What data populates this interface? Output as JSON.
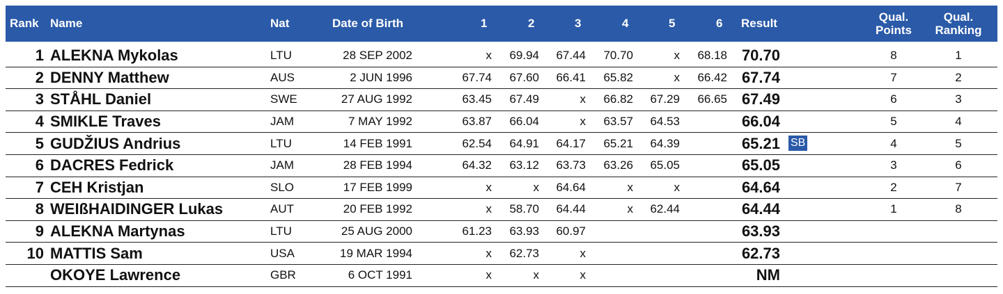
{
  "header": {
    "rank": "Rank",
    "name": "Name",
    "nat": "Nat",
    "dob": "Date of Birth",
    "attempts": [
      "1",
      "2",
      "3",
      "4",
      "5",
      "6"
    ],
    "result": "Result",
    "qual_points": [
      "Qual.",
      "Points"
    ],
    "qual_ranking": [
      "Qual.",
      "Ranking"
    ]
  },
  "colors": {
    "header_bg": "#2a5aa8",
    "badge_bg": "#2a5aa8"
  },
  "rows": [
    {
      "rank": "1",
      "name": "ALEKNA Mykolas",
      "nat": "LTU",
      "dob": "28 SEP 2002",
      "attempts": [
        "x",
        "69.94",
        "67.44",
        "70.70",
        "x",
        "68.18"
      ],
      "result": "70.70",
      "badge": "",
      "qual_points": "8",
      "qual_ranking": "1"
    },
    {
      "rank": "2",
      "name": "DENNY Matthew",
      "nat": "AUS",
      "dob": "2 JUN 1996",
      "attempts": [
        "67.74",
        "67.60",
        "66.41",
        "65.82",
        "x",
        "66.42"
      ],
      "result": "67.74",
      "badge": "",
      "qual_points": "7",
      "qual_ranking": "2"
    },
    {
      "rank": "3",
      "name": "STÅHL Daniel",
      "nat": "SWE",
      "dob": "27 AUG 1992",
      "attempts": [
        "63.45",
        "67.49",
        "x",
        "66.82",
        "67.29",
        "66.65"
      ],
      "result": "67.49",
      "badge": "",
      "qual_points": "6",
      "qual_ranking": "3"
    },
    {
      "rank": "4",
      "name": "SMIKLE Traves",
      "nat": "JAM",
      "dob": "7 MAY 1992",
      "attempts": [
        "63.87",
        "66.04",
        "x",
        "63.57",
        "64.53",
        ""
      ],
      "result": "66.04",
      "badge": "",
      "qual_points": "5",
      "qual_ranking": "4"
    },
    {
      "rank": "5",
      "name": "GUDŽIUS Andrius",
      "nat": "LTU",
      "dob": "14 FEB 1991",
      "attempts": [
        "62.54",
        "64.91",
        "64.17",
        "65.21",
        "64.39",
        ""
      ],
      "result": "65.21",
      "badge": "SB",
      "qual_points": "4",
      "qual_ranking": "5"
    },
    {
      "rank": "6",
      "name": "DACRES Fedrick",
      "nat": "JAM",
      "dob": "28 FEB 1994",
      "attempts": [
        "64.32",
        "63.12",
        "63.73",
        "63.26",
        "65.05",
        ""
      ],
      "result": "65.05",
      "badge": "",
      "qual_points": "3",
      "qual_ranking": "6"
    },
    {
      "rank": "7",
      "name": "CEH Kristjan",
      "nat": "SLO",
      "dob": "17 FEB 1999",
      "attempts": [
        "x",
        "x",
        "64.64",
        "x",
        "x",
        ""
      ],
      "result": "64.64",
      "badge": "",
      "qual_points": "2",
      "qual_ranking": "7"
    },
    {
      "rank": "8",
      "name": "WEIßHAIDINGER Lukas",
      "nat": "AUT",
      "dob": "20 FEB 1992",
      "attempts": [
        "x",
        "58.70",
        "64.44",
        "x",
        "62.44",
        ""
      ],
      "result": "64.44",
      "badge": "",
      "qual_points": "1",
      "qual_ranking": "8"
    },
    {
      "rank": "9",
      "name": "ALEKNA Martynas",
      "nat": "LTU",
      "dob": "25 AUG 2000",
      "attempts": [
        "61.23",
        "63.93",
        "60.97",
        "",
        "",
        ""
      ],
      "result": "63.93",
      "badge": "",
      "qual_points": "",
      "qual_ranking": ""
    },
    {
      "rank": "10",
      "name": "MATTIS Sam",
      "nat": "USA",
      "dob": "19 MAR 1994",
      "attempts": [
        "x",
        "62.73",
        "x",
        "",
        "",
        ""
      ],
      "result": "62.73",
      "badge": "",
      "qual_points": "",
      "qual_ranking": ""
    },
    {
      "rank": "",
      "name": "OKOYE Lawrence",
      "nat": "GBR",
      "dob": "6 OCT 1991",
      "attempts": [
        "x",
        "x",
        "x",
        "",
        "",
        ""
      ],
      "result": "NM",
      "badge": "",
      "qual_points": "",
      "qual_ranking": ""
    }
  ]
}
